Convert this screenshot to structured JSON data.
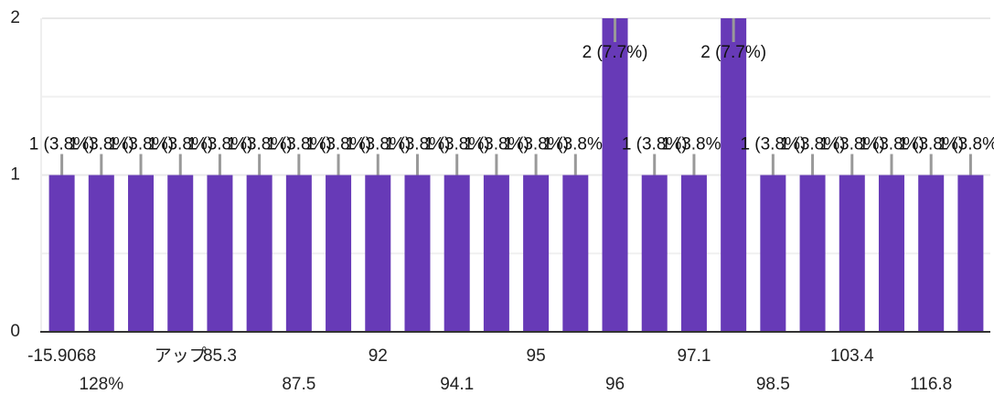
{
  "chart_data": {
    "type": "bar",
    "categories": [
      "-15.9068",
      "128%",
      null,
      "アップ",
      "85.3",
      null,
      "87.5",
      null,
      "92",
      null,
      "94.1",
      null,
      "95",
      null,
      "96",
      null,
      "97.1",
      null,
      "98.5",
      null,
      "103.4",
      null,
      "116.8",
      null
    ],
    "values": [
      1,
      1,
      1,
      1,
      1,
      1,
      1,
      1,
      1,
      1,
      1,
      1,
      1,
      1,
      2,
      1,
      1,
      2,
      1,
      1,
      1,
      1,
      1,
      1
    ],
    "value_labels": [
      "1 (3.8%)",
      "1 (3.8%)",
      "1 (3.8%)",
      "1 (3.8%)",
      "1 (3.8%)",
      "1 (3.8%)",
      "1 (3.8%)",
      "1 (3.8%)",
      "1 (3.8%)",
      "1 (3.8%)",
      "1 (3.8%)",
      "1 (3.8%)",
      "1 (3.8%)",
      "1 (3.8%)",
      "2 (7.7%)",
      "1 (3.8%)",
      "1 (3.8%)",
      "2 (7.7%)",
      "1 (3.8%)",
      "1 (3.8%)",
      "1 (3.8%)",
      "1 (3.8%)",
      "1 (3.8%)",
      "1 (3.8%)"
    ],
    "color": "#673ab7",
    "ylim": [
      0,
      2
    ],
    "yticks": [
      0,
      1,
      2
    ],
    "grid": true
  }
}
